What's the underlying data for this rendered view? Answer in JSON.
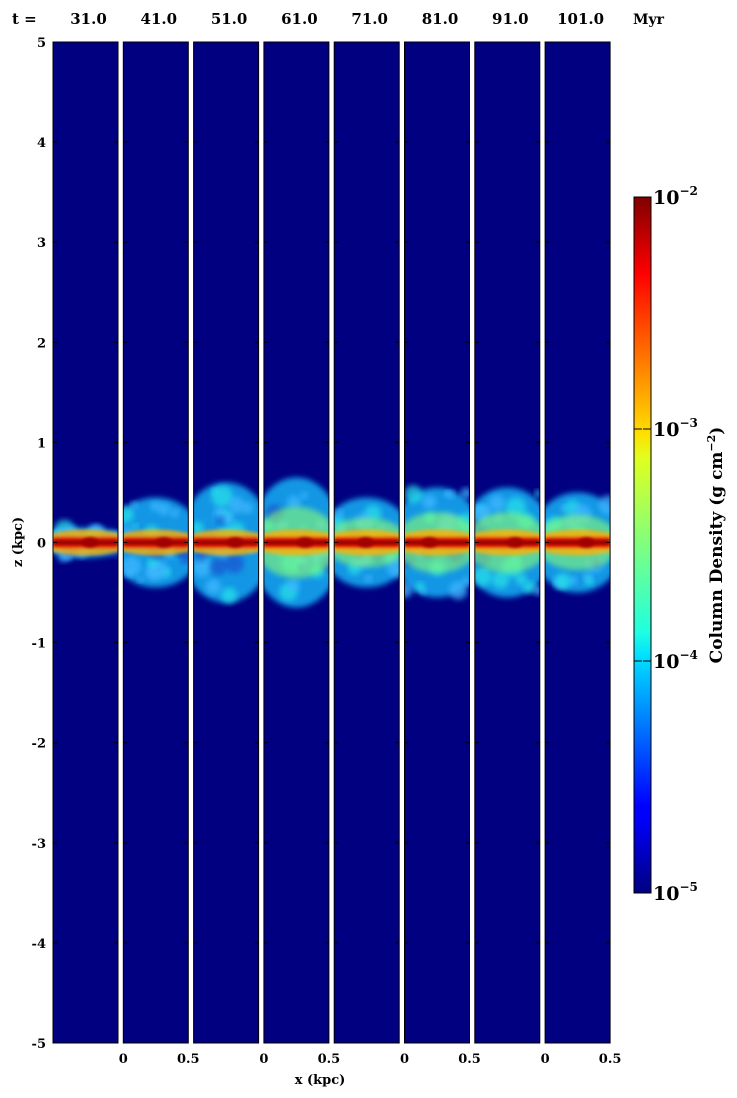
{
  "chart_data": {
    "type": "heatmap",
    "title": "",
    "time_prefix": "t =",
    "time_unit": "Myr",
    "panels": [
      "31.0",
      "41.0",
      "51.0",
      "61.0",
      "71.0",
      "81.0",
      "91.0",
      "101.0"
    ],
    "xlabel": "x (kpc)",
    "ylabel": "z (kpc)",
    "xlim": [
      0,
      0.5
    ],
    "x_ticks": [
      "0",
      "0.5",
      "0",
      "0.5",
      "0",
      "0.5",
      "0",
      "0.5"
    ],
    "ylim": [
      -5,
      5
    ],
    "y_ticks": [
      "5",
      "4",
      "3",
      "2",
      "1",
      "0",
      "-1",
      "-2",
      "-3",
      "-4",
      "-5"
    ],
    "colorbar": {
      "label": "Column Density (g cm",
      "label_exp": "−2",
      "label_close": ")",
      "scale": "log",
      "range": [
        1e-05,
        0.01
      ],
      "colormap": "jet",
      "ticks": [
        {
          "value": 0.01,
          "base": "10",
          "exp": "−2"
        },
        {
          "value": 0.001,
          "base": "10",
          "exp": "−3"
        },
        {
          "value": 0.0001,
          "base": "10",
          "exp": "−4"
        },
        {
          "value": 1e-05,
          "base": "10",
          "exp": "−5"
        }
      ]
    },
    "panel_halfwidth_kpc": [
      0.15,
      0.45,
      0.6,
      0.65,
      0.45,
      0.55,
      0.55,
      0.5
    ],
    "background_color": "#000080"
  }
}
